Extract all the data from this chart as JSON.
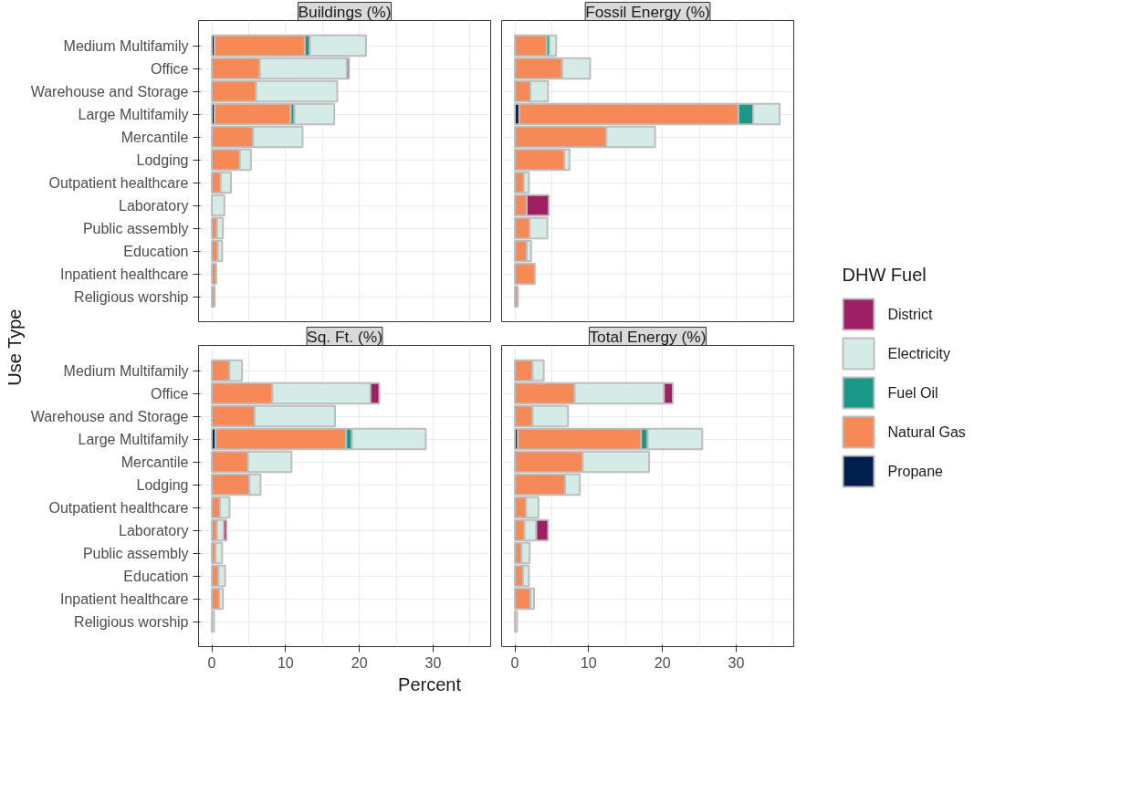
{
  "chart_data": [
    {
      "type": "bar",
      "orientation": "horizontal",
      "stacked": true,
      "title": "Buildings (%)",
      "ylabel": "Use Type",
      "tick_labels": "y",
      "grid": true,
      "legend": "right",
      "legend_title": "DHW Fuel",
      "xlim": [
        -1.8,
        37.8
      ],
      "xticks": [
        0,
        10,
        20,
        30
      ],
      "categories": [
        "Medium Multifamily",
        "Office",
        "Warehouse and Storage",
        "Large Multifamily",
        "Mercantile",
        "Lodging",
        "Outpatient healthcare",
        "Laboratory",
        "Public assembly",
        "Education",
        "Inpatient healthcare",
        "Religious worship"
      ],
      "series": [
        {
          "name": "Propane",
          "color": "#001f4d",
          "values": [
            0.4,
            null,
            null,
            0.4,
            null,
            null,
            null,
            null,
            null,
            null,
            null,
            null
          ]
        },
        {
          "name": "Natural Gas",
          "color": "#f58a57",
          "values": [
            12.2,
            6.5,
            6.0,
            10.3,
            5.6,
            3.8,
            1.2,
            null,
            0.7,
            0.8,
            0.6,
            0.4
          ]
        },
        {
          "name": "Fuel Oil",
          "color": "#1a9988",
          "values": [
            0.7,
            null,
            null,
            0.5,
            null,
            null,
            null,
            null,
            null,
            null,
            null,
            null
          ]
        },
        {
          "name": "Electricity",
          "color": "#d4ebe8",
          "values": [
            7.6,
            11.8,
            11.0,
            5.4,
            6.7,
            1.5,
            1.4,
            1.7,
            0.8,
            0.6,
            null,
            null
          ]
        },
        {
          "name": "District",
          "color": "#9e1f63",
          "values": [
            null,
            0.3,
            null,
            null,
            null,
            null,
            null,
            null,
            null,
            null,
            null,
            null
          ]
        }
      ]
    },
    {
      "type": "bar",
      "orientation": "horizontal",
      "stacked": true,
      "title": "Fossil Energy (%)",
      "tick_labels": false,
      "grid": true,
      "xlim": [
        -1.8,
        37.8
      ],
      "xticks": [
        0,
        10,
        20,
        30
      ],
      "categories": [
        "Medium Multifamily",
        "Office",
        "Warehouse and Storage",
        "Large Multifamily",
        "Mercantile",
        "Lodging",
        "Outpatient healthcare",
        "Laboratory",
        "Public assembly",
        "Education",
        "Inpatient healthcare",
        "Religious worship"
      ],
      "series": [
        {
          "color": "#001f4d",
          "values": [
            null,
            null,
            null,
            0.6,
            null,
            null,
            null,
            null,
            null,
            null,
            null,
            null
          ]
        },
        {
          "color": "#f58a57",
          "values": [
            4.3,
            6.4,
            2.1,
            29.7,
            12.4,
            6.7,
            1.2,
            1.6,
            2.0,
            1.6,
            2.7,
            0.4
          ]
        },
        {
          "color": "#1a9988",
          "values": [
            0.4,
            null,
            null,
            2.0,
            null,
            null,
            null,
            null,
            null,
            null,
            null,
            null
          ]
        },
        {
          "color": "#d4ebe8",
          "values": [
            0.9,
            3.8,
            2.4,
            3.6,
            6.6,
            0.7,
            0.7,
            null,
            2.4,
            0.6,
            null,
            null
          ]
        },
        {
          "color": "#9e1f63",
          "values": [
            null,
            null,
            null,
            null,
            null,
            null,
            null,
            3.0,
            null,
            null,
            null,
            null
          ]
        }
      ]
    },
    {
      "type": "bar",
      "orientation": "horizontal",
      "stacked": true,
      "title": "Sq. Ft. (%)",
      "xlabel": "Percent",
      "grid": true,
      "xlim": [
        -1.8,
        37.8
      ],
      "xticks": [
        0,
        10,
        20,
        30
      ],
      "categories": [
        "Medium Multifamily",
        "Office",
        "Warehouse and Storage",
        "Large Multifamily",
        "Mercantile",
        "Lodging",
        "Outpatient healthcare",
        "Laboratory",
        "Public assembly",
        "Education",
        "Inpatient healthcare",
        "Religious worship"
      ],
      "series": [
        {
          "color": "#001f4d",
          "values": [
            null,
            null,
            null,
            0.5,
            null,
            null,
            null,
            null,
            null,
            null,
            null,
            null
          ]
        },
        {
          "color": "#f58a57",
          "values": [
            2.4,
            8.2,
            5.8,
            17.7,
            4.9,
            5.1,
            1.1,
            0.7,
            0.5,
            0.9,
            1.0,
            null
          ]
        },
        {
          "color": "#1a9988",
          "values": [
            null,
            null,
            null,
            0.8,
            null,
            null,
            null,
            null,
            null,
            null,
            null,
            null
          ]
        },
        {
          "color": "#d4ebe8",
          "values": [
            1.7,
            13.3,
            10.9,
            10.0,
            5.9,
            1.5,
            1.3,
            0.9,
            0.9,
            0.9,
            0.5,
            0.3
          ]
        },
        {
          "color": "#9e1f63",
          "values": [
            null,
            1.2,
            null,
            null,
            null,
            null,
            null,
            0.4,
            null,
            null,
            null,
            null
          ]
        }
      ]
    },
    {
      "type": "bar",
      "orientation": "horizontal",
      "stacked": true,
      "title": "Total Energy (%)",
      "tick_labels": "x",
      "grid": true,
      "xlim": [
        -1.8,
        37.8
      ],
      "xticks": [
        0,
        10,
        20,
        30
      ],
      "categories": [
        "Medium Multifamily",
        "Office",
        "Warehouse and Storage",
        "Large Multifamily",
        "Mercantile",
        "Lodging",
        "Outpatient healthcare",
        "Laboratory",
        "Public assembly",
        "Education",
        "Inpatient healthcare",
        "Religious worship"
      ],
      "series": [
        {
          "color": "#001f4d",
          "values": [
            null,
            null,
            null,
            0.4,
            null,
            null,
            null,
            null,
            null,
            null,
            null,
            null
          ]
        },
        {
          "color": "#f58a57",
          "values": [
            2.4,
            8.1,
            2.4,
            16.7,
            9.2,
            6.8,
            1.5,
            1.3,
            0.9,
            1.1,
            2.1,
            null
          ]
        },
        {
          "color": "#1a9988",
          "values": [
            null,
            null,
            null,
            0.9,
            null,
            null,
            null,
            null,
            null,
            null,
            null,
            null
          ]
        },
        {
          "color": "#d4ebe8",
          "values": [
            1.5,
            12.1,
            4.8,
            7.4,
            9.0,
            2.0,
            1.7,
            1.6,
            1.1,
            0.8,
            0.5,
            0.3
          ]
        },
        {
          "color": "#9e1f63",
          "values": [
            null,
            1.2,
            null,
            null,
            null,
            null,
            null,
            1.6,
            null,
            null,
            null,
            null
          ]
        }
      ]
    }
  ]
}
